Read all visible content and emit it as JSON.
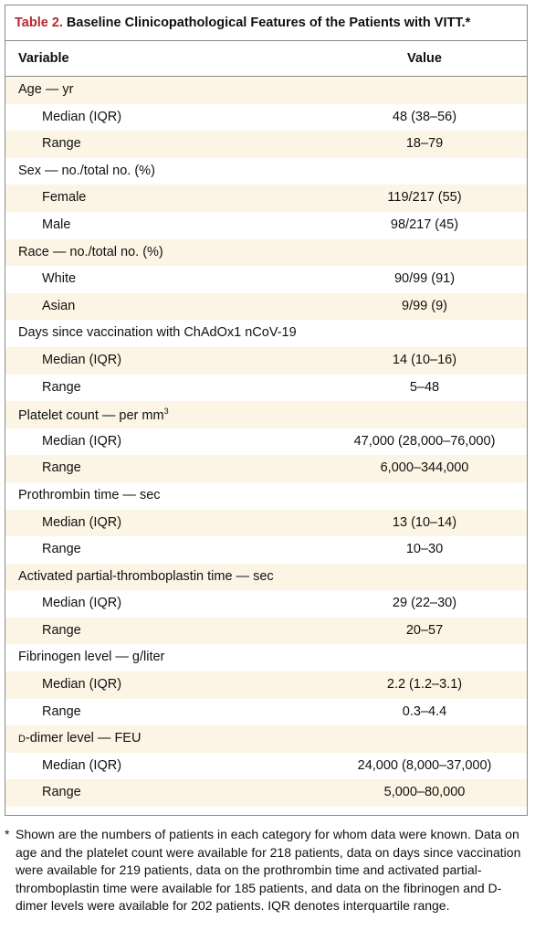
{
  "table": {
    "title_label": "Table 2.",
    "title": "Baseline Clinicopathological Features of the Patients with VITT.*",
    "columns": [
      "Variable",
      "Value"
    ],
    "groups": [
      {
        "label": "Age — yr",
        "items": [
          {
            "label": "Median (IQR)",
            "value": "48 (38–56)"
          },
          {
            "label": "Range",
            "value": "18–79"
          }
        ]
      },
      {
        "label": "Sex — no./total no. (%)",
        "items": [
          {
            "label": "Female",
            "value": "119/217 (55)"
          },
          {
            "label": "Male",
            "value": "98/217 (45)"
          }
        ]
      },
      {
        "label": "Race — no./total no. (%)",
        "items": [
          {
            "label": "White",
            "value": "90/99 (91)"
          },
          {
            "label": "Asian",
            "value": "9/99 (9)"
          }
        ]
      },
      {
        "label": "Days since vaccination with ChAdOx1 nCoV-19",
        "items": [
          {
            "label": "Median (IQR)",
            "value": "14 (10–16)"
          },
          {
            "label": "Range",
            "value": "5–48"
          }
        ]
      },
      {
        "label": "Platelet count — per mm",
        "label_sup": "3",
        "items": [
          {
            "label": "Median (IQR)",
            "value": "47,000 (28,000–76,000)"
          },
          {
            "label": "Range",
            "value": "6,000–344,000"
          }
        ]
      },
      {
        "label": "Prothrombin time — sec",
        "items": [
          {
            "label": "Median (IQR)",
            "value": "13 (10–14)"
          },
          {
            "label": "Range",
            "value": "10–30"
          }
        ]
      },
      {
        "label": "Activated partial-thromboplastin time — sec",
        "items": [
          {
            "label": "Median (IQR)",
            "value": "29 (22–30)"
          },
          {
            "label": "Range",
            "value": "20–57"
          }
        ]
      },
      {
        "label": "Fibrinogen level — g/liter",
        "items": [
          {
            "label": "Median (IQR)",
            "value": "2.2 (1.2–3.1)"
          },
          {
            "label": "Range",
            "value": "0.3–4.4"
          }
        ]
      },
      {
        "label": "d-dimer level — FEU",
        "small_caps_first": true,
        "items": [
          {
            "label": "Median (IQR)",
            "value": "24,000 (8,000–37,000)"
          },
          {
            "label": "Range",
            "value": "5,000–80,000"
          }
        ]
      }
    ],
    "footnote_mark": "*",
    "footnote": "Shown are the numbers of patients in each category for whom data were known. Data on age and the platelet count were available for 218 patients, data on days since vaccination were available for 219 patients, data on the prothrombin time and activated partial-thromboplastin time were available for 185 patients, and data on the fibrinogen and D-dimer levels were available for 202 patients. IQR denotes interquartile range."
  }
}
